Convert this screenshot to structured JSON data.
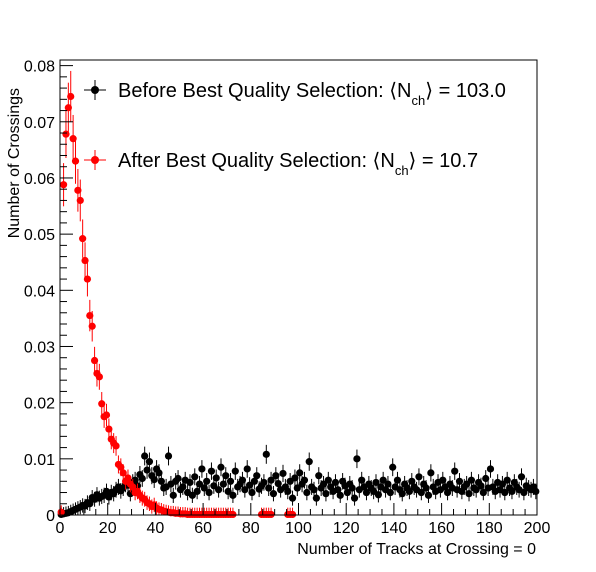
{
  "chart_data": {
    "type": "scatter",
    "xlabel": "Number of Tracks at Crossing = 0",
    "ylabel": "Number of Crossings",
    "xlim": [
      0,
      200
    ],
    "ylim": [
      0,
      0.081
    ],
    "x_ticks": [
      "0",
      "20",
      "40",
      "60",
      "80",
      "100",
      "120",
      "140",
      "160",
      "180",
      "200"
    ],
    "y_ticks": [
      "0",
      "0.01",
      "0.02",
      "0.03",
      "0.04",
      "0.05",
      "0.06",
      "0.07",
      "0.08"
    ],
    "legend_position": "top-right",
    "legend": [
      {
        "prefix": "Before Best Quality Selection: ⟨N",
        "sub": "ch",
        "suffix": "⟩ = 103.0",
        "color": "#000000"
      },
      {
        "prefix": "After Best Quality Selection: ⟨N",
        "sub": "ch",
        "suffix": "⟩ = 10.7",
        "color": "#ff0000"
      }
    ],
    "series": [
      {
        "color": "#000000",
        "x": [
          0,
          1,
          2,
          3,
          4,
          5,
          6,
          7,
          8,
          9,
          10,
          11,
          12,
          13,
          14,
          15,
          16,
          17,
          18,
          19,
          20,
          21,
          22,
          23,
          24,
          25,
          26,
          27,
          28,
          29,
          30,
          31,
          32,
          33,
          34,
          35,
          36,
          37,
          38,
          39,
          40,
          41,
          42,
          43,
          44,
          45,
          46,
          47,
          48,
          49,
          50,
          51,
          52,
          53,
          54,
          55,
          56,
          57,
          58,
          59,
          60,
          61,
          62,
          63,
          64,
          65,
          66,
          67,
          68,
          69,
          70,
          71,
          72,
          73,
          74,
          75,
          76,
          77,
          78,
          79,
          80,
          81,
          82,
          83,
          84,
          85,
          86,
          87,
          88,
          89,
          90,
          91,
          92,
          93,
          94,
          95,
          96,
          97,
          98,
          99,
          100,
          101,
          102,
          103,
          104,
          105,
          106,
          107,
          108,
          109,
          110,
          111,
          112,
          113,
          114,
          115,
          116,
          117,
          118,
          119,
          120,
          121,
          122,
          123,
          124,
          125,
          126,
          127,
          128,
          129,
          130,
          131,
          132,
          133,
          134,
          135,
          136,
          137,
          138,
          139,
          140,
          141,
          142,
          143,
          144,
          145,
          146,
          147,
          148,
          149,
          150,
          151,
          152,
          153,
          154,
          155,
          156,
          157,
          158,
          159,
          160,
          161,
          162,
          163,
          164,
          165,
          166,
          167,
          168,
          169,
          170,
          171,
          172,
          173,
          174,
          175,
          176,
          177,
          178,
          179,
          180,
          181,
          182,
          183,
          184,
          185,
          186,
          187,
          188,
          189,
          190,
          191,
          192,
          193,
          194,
          195,
          196,
          197,
          198,
          199
        ],
        "y": [
          0.0001,
          0.0002,
          0.0003,
          0.0004,
          0.0006,
          0.0008,
          0.001,
          0.0012,
          0.0014,
          0.0017,
          0.0016,
          0.0022,
          0.002,
          0.0031,
          0.0028,
          0.0036,
          0.003,
          0.0033,
          0.0035,
          0.0042,
          0.0032,
          0.004,
          0.0038,
          0.0045,
          0.005,
          0.0043,
          0.0048,
          0.0055,
          0.0053,
          0.0038,
          0.0058,
          0.0062,
          0.0052,
          0.0072,
          0.0065,
          0.0105,
          0.008,
          0.0095,
          0.007,
          0.0063,
          0.0082,
          0.0075,
          0.006,
          0.0048,
          0.005,
          0.0105,
          0.0055,
          0.0035,
          0.006,
          0.0065,
          0.0045,
          0.005,
          0.0062,
          0.004,
          0.0058,
          0.0035,
          0.0068,
          0.0042,
          0.0055,
          0.0082,
          0.0048,
          0.006,
          0.004,
          0.0078,
          0.0052,
          0.0066,
          0.0045,
          0.0085,
          0.0055,
          0.007,
          0.0042,
          0.006,
          0.0035,
          0.0078,
          0.005,
          0.0055,
          0.0062,
          0.0045,
          0.0082,
          0.0053,
          0.004,
          0.006,
          0.007,
          0.0046,
          0.0052,
          0.0058,
          0.0108,
          0.0048,
          0.0062,
          0.0038,
          0.007,
          0.0056,
          0.0045,
          0.0074,
          0.005,
          0.0042,
          0.006,
          0.003,
          0.0066,
          0.0048,
          0.0075,
          0.0055,
          0.0062,
          0.004,
          0.0095,
          0.005,
          0.0045,
          0.003,
          0.007,
          0.0048,
          0.0055,
          0.0038,
          0.0062,
          0.005,
          0.0042,
          0.0058,
          0.0045,
          0.0035,
          0.006,
          0.0052,
          0.004,
          0.0055,
          0.0048,
          0.003,
          0.01,
          0.0045,
          0.0062,
          0.005,
          0.004,
          0.0055,
          0.0048,
          0.0042,
          0.0058,
          0.0036,
          0.005,
          0.0062,
          0.0045,
          0.0055,
          0.004,
          0.0085,
          0.005,
          0.0062,
          0.0045,
          0.0038,
          0.0055,
          0.0048,
          0.0042,
          0.006,
          0.005,
          0.0045,
          0.0068,
          0.004,
          0.0055,
          0.0048,
          0.0035,
          0.0075,
          0.005,
          0.0042,
          0.0058,
          0.0045,
          0.0062,
          0.005,
          0.004,
          0.0055,
          0.0048,
          0.0078,
          0.0045,
          0.006,
          0.0042,
          0.005,
          0.0055,
          0.0038,
          0.0062,
          0.0048,
          0.0045,
          0.0058,
          0.0052,
          0.004,
          0.0065,
          0.0048,
          0.0082,
          0.005,
          0.0042,
          0.0058,
          0.0045,
          0.0055,
          0.004,
          0.0062,
          0.0048,
          0.0042,
          0.0058,
          0.005,
          0.0045,
          0.0068,
          0.004,
          0.0052,
          0.0048,
          0.0045,
          0.005,
          0.0042
        ]
      },
      {
        "color": "#ff0000",
        "x": [
          0,
          1,
          2,
          3,
          4,
          5,
          6,
          7,
          8,
          9,
          10,
          11,
          12,
          13,
          14,
          15,
          16,
          17,
          18,
          19,
          20,
          21,
          22,
          23,
          24,
          25,
          26,
          27,
          28,
          29,
          30,
          31,
          32,
          33,
          34,
          35,
          36,
          37,
          38,
          39,
          40,
          41,
          42,
          43,
          44,
          45,
          46,
          47,
          48,
          49,
          50,
          51,
          52,
          53,
          54,
          55,
          56,
          57,
          58,
          59,
          60,
          61,
          62,
          63,
          64,
          65,
          66,
          67,
          68,
          69,
          70,
          71,
          72,
          84,
          85,
          86,
          87,
          88,
          95,
          96,
          97
        ],
        "y": [
          0.0005,
          0.0588,
          0.0678,
          0.0725,
          0.0745,
          0.067,
          0.063,
          0.0578,
          0.056,
          0.0492,
          0.0453,
          0.042,
          0.0355,
          0.0336,
          0.0275,
          0.0252,
          0.0246,
          0.0198,
          0.0175,
          0.0178,
          0.0153,
          0.0135,
          0.0128,
          0.0123,
          0.009,
          0.0085,
          0.0075,
          0.006,
          0.0066,
          0.0055,
          0.005,
          0.004,
          0.0042,
          0.0035,
          0.003,
          0.0028,
          0.0022,
          0.002,
          0.0015,
          0.0018,
          0.0012,
          0.001,
          0.0009,
          0.0007,
          0.0006,
          0.0005,
          0.0004,
          0.0004,
          0.0003,
          0.0003,
          0.0002,
          0.0002,
          0.0002,
          0.0001,
          0.0001,
          0.0001,
          0.0001,
          0.0001,
          0.0001,
          0.0001,
          0.0001,
          0.0001,
          0.0001,
          0.0001,
          0.0001,
          0.0001,
          0.0001,
          0.0001,
          0.0001,
          0.0001,
          0.0001,
          0.0001,
          0.0001,
          0.0001,
          0.0001,
          0.0001,
          0.0001,
          0.0001,
          0.0001,
          0.0001,
          0.0001
        ]
      }
    ]
  }
}
